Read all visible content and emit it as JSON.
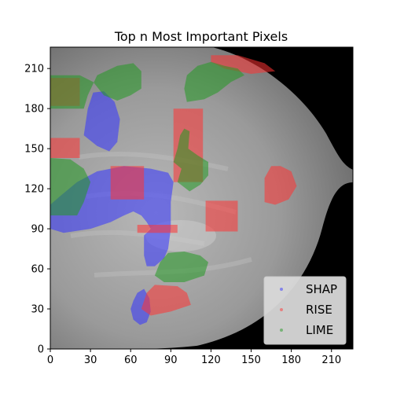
{
  "chart_data": {
    "type": "scatter",
    "title": "Top n Most Important Pixels",
    "xlabel": "",
    "ylabel": "",
    "xlim": [
      0,
      226
    ],
    "ylim": [
      0,
      226
    ],
    "x_ticks": [
      0,
      30,
      60,
      90,
      120,
      150,
      180,
      210
    ],
    "y_ticks": [
      0,
      30,
      60,
      90,
      120,
      150,
      180,
      210
    ],
    "background_image": "grayscale mammogram (breast tissue on black background)",
    "grid": false,
    "legend": {
      "position": "lower-right",
      "entries": [
        "SHAP",
        "RISE",
        "LIME"
      ]
    },
    "series": [
      {
        "name": "SHAP",
        "color": "#3333ff",
        "regions": [
          {
            "shape": "polygon",
            "points": [
              [
                0,
                90
              ],
              [
                10,
                87
              ],
              [
                30,
                90
              ],
              [
                45,
                95
              ],
              [
                55,
                100
              ],
              [
                62,
                103
              ],
              [
                68,
                100
              ],
              [
                72,
                95
              ],
              [
                75,
                90
              ],
              [
                70,
                85
              ],
              [
                70,
                70
              ],
              [
                72,
                62
              ],
              [
                78,
                62
              ],
              [
                85,
                68
              ],
              [
                88,
                75
              ],
              [
                90,
                90
              ],
              [
                90,
                110
              ],
              [
                92,
                125
              ],
              [
                88,
                132
              ],
              [
                75,
                135
              ],
              [
                55,
                137
              ],
              [
                35,
                133
              ],
              [
                20,
                125
              ],
              [
                8,
                115
              ],
              [
                0,
                108
              ]
            ]
          },
          {
            "shape": "polygon",
            "points": [
              [
                25,
                160
              ],
              [
                28,
                180
              ],
              [
                32,
                192
              ],
              [
                40,
                193
              ],
              [
                48,
                185
              ],
              [
                52,
                172
              ],
              [
                50,
                155
              ],
              [
                44,
                148
              ],
              [
                35,
                152
              ]
            ]
          },
          {
            "shape": "polygon",
            "points": [
              [
                60,
                30
              ],
              [
                62,
                22
              ],
              [
                67,
                18
              ],
              [
                72,
                20
              ],
              [
                75,
                28
              ],
              [
                74,
                38
              ],
              [
                70,
                45
              ],
              [
                65,
                42
              ],
              [
                62,
                36
              ]
            ]
          }
        ]
      },
      {
        "name": "RISE",
        "color": "#ff3333",
        "regions": [
          {
            "shape": "polygon",
            "points": [
              [
                0,
                182
              ],
              [
                22,
                182
              ],
              [
                22,
                203
              ],
              [
                0,
                203
              ]
            ]
          },
          {
            "shape": "polygon",
            "points": [
              [
                0,
                143
              ],
              [
                22,
                143
              ],
              [
                22,
                158
              ],
              [
                0,
                158
              ]
            ]
          },
          {
            "shape": "polygon",
            "points": [
              [
                45,
                112
              ],
              [
                70,
                112
              ],
              [
                70,
                137
              ],
              [
                45,
                137
              ]
            ]
          },
          {
            "shape": "polygon",
            "points": [
              [
                92,
                125
              ],
              [
                114,
                125
              ],
              [
                114,
                180
              ],
              [
                92,
                180
              ]
            ]
          },
          {
            "shape": "polygon",
            "points": [
              [
                116,
                88
              ],
              [
                140,
                88
              ],
              [
                140,
                111
              ],
              [
                116,
                111
              ]
            ]
          },
          {
            "shape": "polygon",
            "points": [
              [
                160,
                110
              ],
              [
                168,
                108
              ],
              [
                178,
                112
              ],
              [
                184,
                122
              ],
              [
                180,
                133
              ],
              [
                172,
                137
              ],
              [
                165,
                137
              ],
              [
                160,
                128
              ]
            ]
          },
          {
            "shape": "polygon",
            "points": [
              [
                68,
                30
              ],
              [
                75,
                25
              ],
              [
                90,
                28
              ],
              [
                105,
                33
              ],
              [
                102,
                42
              ],
              [
                95,
                47
              ],
              [
                78,
                48
              ],
              [
                72,
                42
              ]
            ]
          },
          {
            "shape": "polygon",
            "points": [
              [
                120,
                220
              ],
              [
                140,
                220
              ],
              [
                160,
                214
              ],
              [
                168,
                208
              ],
              [
                150,
                206
              ],
              [
                130,
                210
              ],
              [
                120,
                215
              ]
            ]
          },
          {
            "shape": "polygon",
            "points": [
              [
                65,
                87
              ],
              [
                95,
                87
              ],
              [
                95,
                93
              ],
              [
                65,
                93
              ]
            ]
          }
        ]
      },
      {
        "name": "LIME",
        "color": "#229922",
        "regions": [
          {
            "shape": "polygon",
            "points": [
              [
                0,
                180
              ],
              [
                25,
                180
              ],
              [
                28,
                190
              ],
              [
                35,
                205
              ],
              [
                50,
                212
              ],
              [
                62,
                214
              ],
              [
                68,
                208
              ],
              [
                68,
                195
              ],
              [
                60,
                190
              ],
              [
                50,
                186
              ],
              [
                40,
                190
              ],
              [
                32,
                200
              ],
              [
                22,
                205
              ],
              [
                0,
                205
              ]
            ]
          },
          {
            "shape": "polygon",
            "points": [
              [
                0,
                100
              ],
              [
                20,
                100
              ],
              [
                25,
                110
              ],
              [
                30,
                125
              ],
              [
                25,
                135
              ],
              [
                15,
                142
              ],
              [
                0,
                143
              ]
            ]
          },
          {
            "shape": "polygon",
            "points": [
              [
                95,
                125
              ],
              [
                98,
                135
              ],
              [
                92,
                140
              ],
              [
                95,
                150
              ],
              [
                97,
                160
              ],
              [
                100,
                165
              ],
              [
                104,
                163
              ],
              [
                103,
                150
              ],
              [
                110,
                145
              ],
              [
                118,
                140
              ],
              [
                118,
                130
              ],
              [
                112,
                123
              ],
              [
                104,
                118
              ]
            ]
          },
          {
            "shape": "polygon",
            "points": [
              [
                78,
                55
              ],
              [
                85,
                50
              ],
              [
                100,
                50
              ],
              [
                115,
                55
              ],
              [
                118,
                65
              ],
              [
                112,
                70
              ],
              [
                100,
                73
              ],
              [
                88,
                72
              ],
              [
                82,
                65
              ]
            ]
          },
          {
            "shape": "polygon",
            "points": [
              [
                102,
                185
              ],
              [
                100,
                195
              ],
              [
                102,
                205
              ],
              [
                110,
                212
              ],
              [
                120,
                215
              ],
              [
                130,
                212
              ],
              [
                140,
                210
              ],
              [
                145,
                205
              ],
              [
                135,
                200
              ],
              [
                125,
                192
              ],
              [
                115,
                187
              ]
            ]
          }
        ]
      }
    ]
  }
}
